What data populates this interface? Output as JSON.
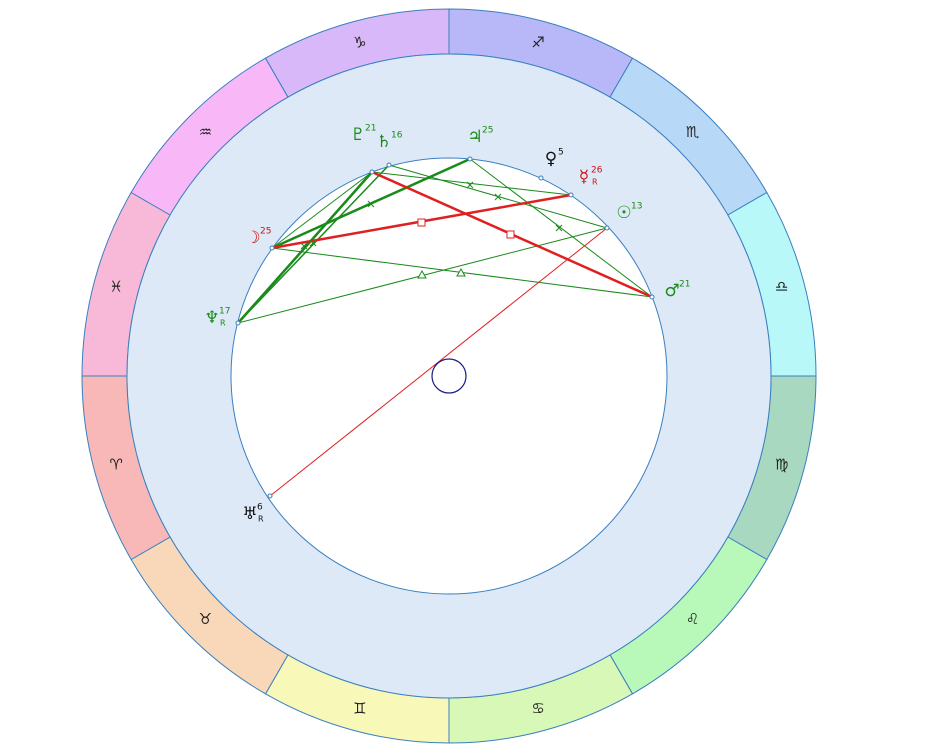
{
  "signs": [
    "♐︎",
    "♏︎",
    "♎︎",
    "♍︎",
    "♌︎",
    "♋︎",
    "♊︎",
    "♉︎",
    "♈︎",
    "♓︎",
    "♒︎",
    "♑︎"
  ],
  "planets": [
    {
      "glyph": "♇",
      "degree": 21,
      "color": "#1a8a1a"
    },
    {
      "glyph": "♄",
      "degree": 16,
      "color": "#1a8a1a"
    },
    {
      "glyph": "♃",
      "degree": 25,
      "color": "#1a8a1a"
    },
    {
      "glyph": "♀",
      "degree": 5,
      "color": "#111111"
    },
    {
      "glyph": "☿",
      "degree": 26,
      "retrograde": "R",
      "color": "#d01010"
    },
    {
      "glyph": "☉",
      "degree": 13,
      "color": "#1a8a1a"
    },
    {
      "glyph": "♂",
      "degree": 21,
      "color": "#1a8a1a"
    },
    {
      "glyph": "☽",
      "degree": 25,
      "color": "#d01010"
    },
    {
      "glyph": "♆",
      "degree": 17,
      "retrograde": "R",
      "color": "#1a8a1a"
    },
    {
      "glyph": "♅",
      "degree": 6,
      "retrograde": "R",
      "color": "#111111"
    }
  ]
}
